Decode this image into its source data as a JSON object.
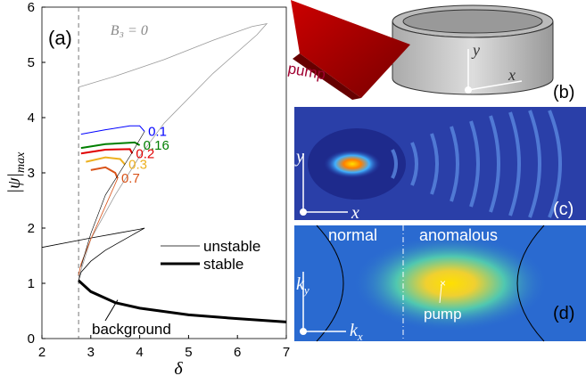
{
  "chart_data": {
    "type": "line",
    "panel_label": "(a)",
    "xlabel": "δ",
    "ylabel": "|ψ|",
    "ylabel_sub": "max",
    "xlim": [
      2,
      7
    ],
    "ylim": [
      0,
      6
    ],
    "xticks": [
      2,
      3,
      4,
      5,
      6,
      7
    ],
    "yticks": [
      0,
      1,
      2,
      3,
      4,
      5,
      6
    ],
    "threshold_x": 2.75,
    "annotations": {
      "background": "background",
      "b3": "B₃ = 0"
    },
    "legend": "lower right",
    "series": [
      {
        "name": "stable",
        "color": "#000000",
        "width": 3,
        "x": [
          2.75,
          3,
          3.5,
          4,
          5,
          6,
          7
        ],
        "values": [
          1.05,
          0.85,
          0.65,
          0.55,
          0.43,
          0.36,
          0.3
        ]
      },
      {
        "name": "unstable",
        "color": "#000000",
        "width": 0.8,
        "x": [
          2,
          3,
          3.5,
          4,
          4.1,
          3.8,
          3.3,
          3,
          2.8,
          2.75
        ],
        "values": [
          1.65,
          1.82,
          1.9,
          1.98,
          2.0,
          1.85,
          1.6,
          1.4,
          1.2,
          1.05
        ]
      },
      {
        "name": null,
        "color": "#999999",
        "width": 0.8,
        "x": [
          2.75,
          3.5,
          4.5,
          5.5,
          6.3,
          6.6,
          6.4,
          5.5,
          4.5,
          4,
          3.5,
          3,
          2.75
        ],
        "values": [
          4.55,
          4.75,
          5.05,
          5.4,
          5.65,
          5.7,
          5.5,
          4.8,
          3.9,
          3.3,
          2.6,
          1.8,
          1.1
        ]
      },
      {
        "name": "0.1",
        "color": "#0000ff",
        "width": 1,
        "x": [
          2.8,
          3.3,
          3.8,
          4.0,
          4.1
        ],
        "values": [
          3.7,
          3.78,
          3.85,
          3.85,
          3.75
        ]
      },
      {
        "name": "0.16",
        "color": "#007f00",
        "width": 2,
        "x": [
          2.8,
          3.3,
          3.9,
          4.0
        ],
        "values": [
          3.45,
          3.52,
          3.55,
          3.5
        ]
      },
      {
        "name": "0.2",
        "color": "#e00000",
        "width": 2,
        "x": [
          2.8,
          3.3,
          3.8,
          3.85
        ],
        "values": [
          3.35,
          3.42,
          3.43,
          3.35
        ]
      },
      {
        "name": "0.3",
        "color": "#edb120",
        "width": 2,
        "x": [
          2.9,
          3.3,
          3.6,
          3.7
        ],
        "values": [
          3.2,
          3.28,
          3.25,
          3.15
        ]
      },
      {
        "name": "0.7",
        "color": "#d95319",
        "width": 2,
        "x": [
          3.0,
          3.3,
          3.5,
          3.55
        ],
        "values": [
          3.05,
          3.1,
          3.0,
          2.9
        ]
      },
      {
        "name": null,
        "color": "#d95319",
        "width": 0.8,
        "x": [
          3.55,
          3.3,
          3.0,
          2.8,
          2.75
        ],
        "values": [
          2.9,
          2.4,
          1.8,
          1.35,
          1.15
        ]
      },
      {
        "name": null,
        "color": "#000000",
        "width": 0.6,
        "x": [
          2.8,
          3.0,
          3.3,
          3.8,
          4.1
        ],
        "values": [
          1.3,
          1.9,
          2.6,
          3.3,
          3.75
        ]
      }
    ]
  },
  "panels": {
    "b": {
      "label": "(b)",
      "pump": "pump",
      "y": "y",
      "x": "x"
    },
    "c": {
      "label": "(c)",
      "y": "y",
      "x": "x"
    },
    "d": {
      "label": "(d)",
      "normal": "normal",
      "anomalous": "anomalous",
      "pump": "pump",
      "ky": {
        "base": "k",
        "sub": "y"
      },
      "kx": {
        "base": "k",
        "sub": "x"
      }
    }
  }
}
